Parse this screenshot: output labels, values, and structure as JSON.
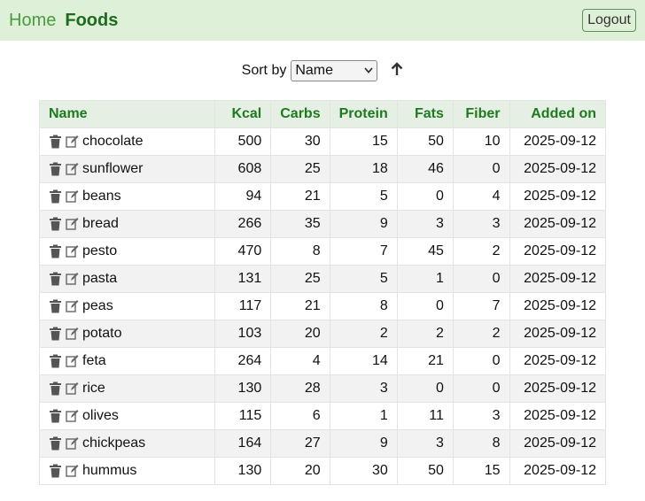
{
  "nav": {
    "home": "Home",
    "foods": "Foods",
    "logout": "Logout"
  },
  "sort": {
    "label": "Sort by",
    "selected": "Name",
    "direction_icon": "arrow-up-icon"
  },
  "table": {
    "headers": [
      "Name",
      "Kcal",
      "Carbs",
      "Protein",
      "Fats",
      "Fiber",
      "Added on"
    ],
    "rows": [
      {
        "name": "chocolate",
        "kcal": "500",
        "carbs": "30",
        "protein": "15",
        "fats": "50",
        "fiber": "10",
        "added": "2025-09-12"
      },
      {
        "name": "sunflower",
        "kcal": "608",
        "carbs": "25",
        "protein": "18",
        "fats": "46",
        "fiber": "0",
        "added": "2025-09-12"
      },
      {
        "name": "beans",
        "kcal": "94",
        "carbs": "21",
        "protein": "5",
        "fats": "0",
        "fiber": "4",
        "added": "2025-09-12"
      },
      {
        "name": "bread",
        "kcal": "266",
        "carbs": "35",
        "protein": "9",
        "fats": "3",
        "fiber": "3",
        "added": "2025-09-12"
      },
      {
        "name": "pesto",
        "kcal": "470",
        "carbs": "8",
        "protein": "7",
        "fats": "45",
        "fiber": "2",
        "added": "2025-09-12"
      },
      {
        "name": "pasta",
        "kcal": "131",
        "carbs": "25",
        "protein": "5",
        "fats": "1",
        "fiber": "0",
        "added": "2025-09-12"
      },
      {
        "name": "peas",
        "kcal": "117",
        "carbs": "21",
        "protein": "8",
        "fats": "0",
        "fiber": "7",
        "added": "2025-09-12"
      },
      {
        "name": "potato",
        "kcal": "103",
        "carbs": "20",
        "protein": "2",
        "fats": "2",
        "fiber": "2",
        "added": "2025-09-12"
      },
      {
        "name": "feta",
        "kcal": "264",
        "carbs": "4",
        "protein": "14",
        "fats": "21",
        "fiber": "0",
        "added": "2025-09-12"
      },
      {
        "name": "rice",
        "kcal": "130",
        "carbs": "28",
        "protein": "3",
        "fats": "0",
        "fiber": "0",
        "added": "2025-09-12"
      },
      {
        "name": "olives",
        "kcal": "115",
        "carbs": "6",
        "protein": "1",
        "fats": "11",
        "fiber": "3",
        "added": "2025-09-12"
      },
      {
        "name": "chickpeas",
        "kcal": "164",
        "carbs": "27",
        "protein": "9",
        "fats": "3",
        "fiber": "8",
        "added": "2025-09-12"
      },
      {
        "name": "hummus",
        "kcal": "130",
        "carbs": "20",
        "protein": "30",
        "fats": "50",
        "fiber": "15",
        "added": "2025-09-12"
      }
    ]
  },
  "colors": {
    "navbar_bg": "#dff0d8",
    "header_green": "#1e7a1e",
    "home_green": "#4a9a3f"
  },
  "row_icons": [
    "trash-icon",
    "edit-icon"
  ]
}
